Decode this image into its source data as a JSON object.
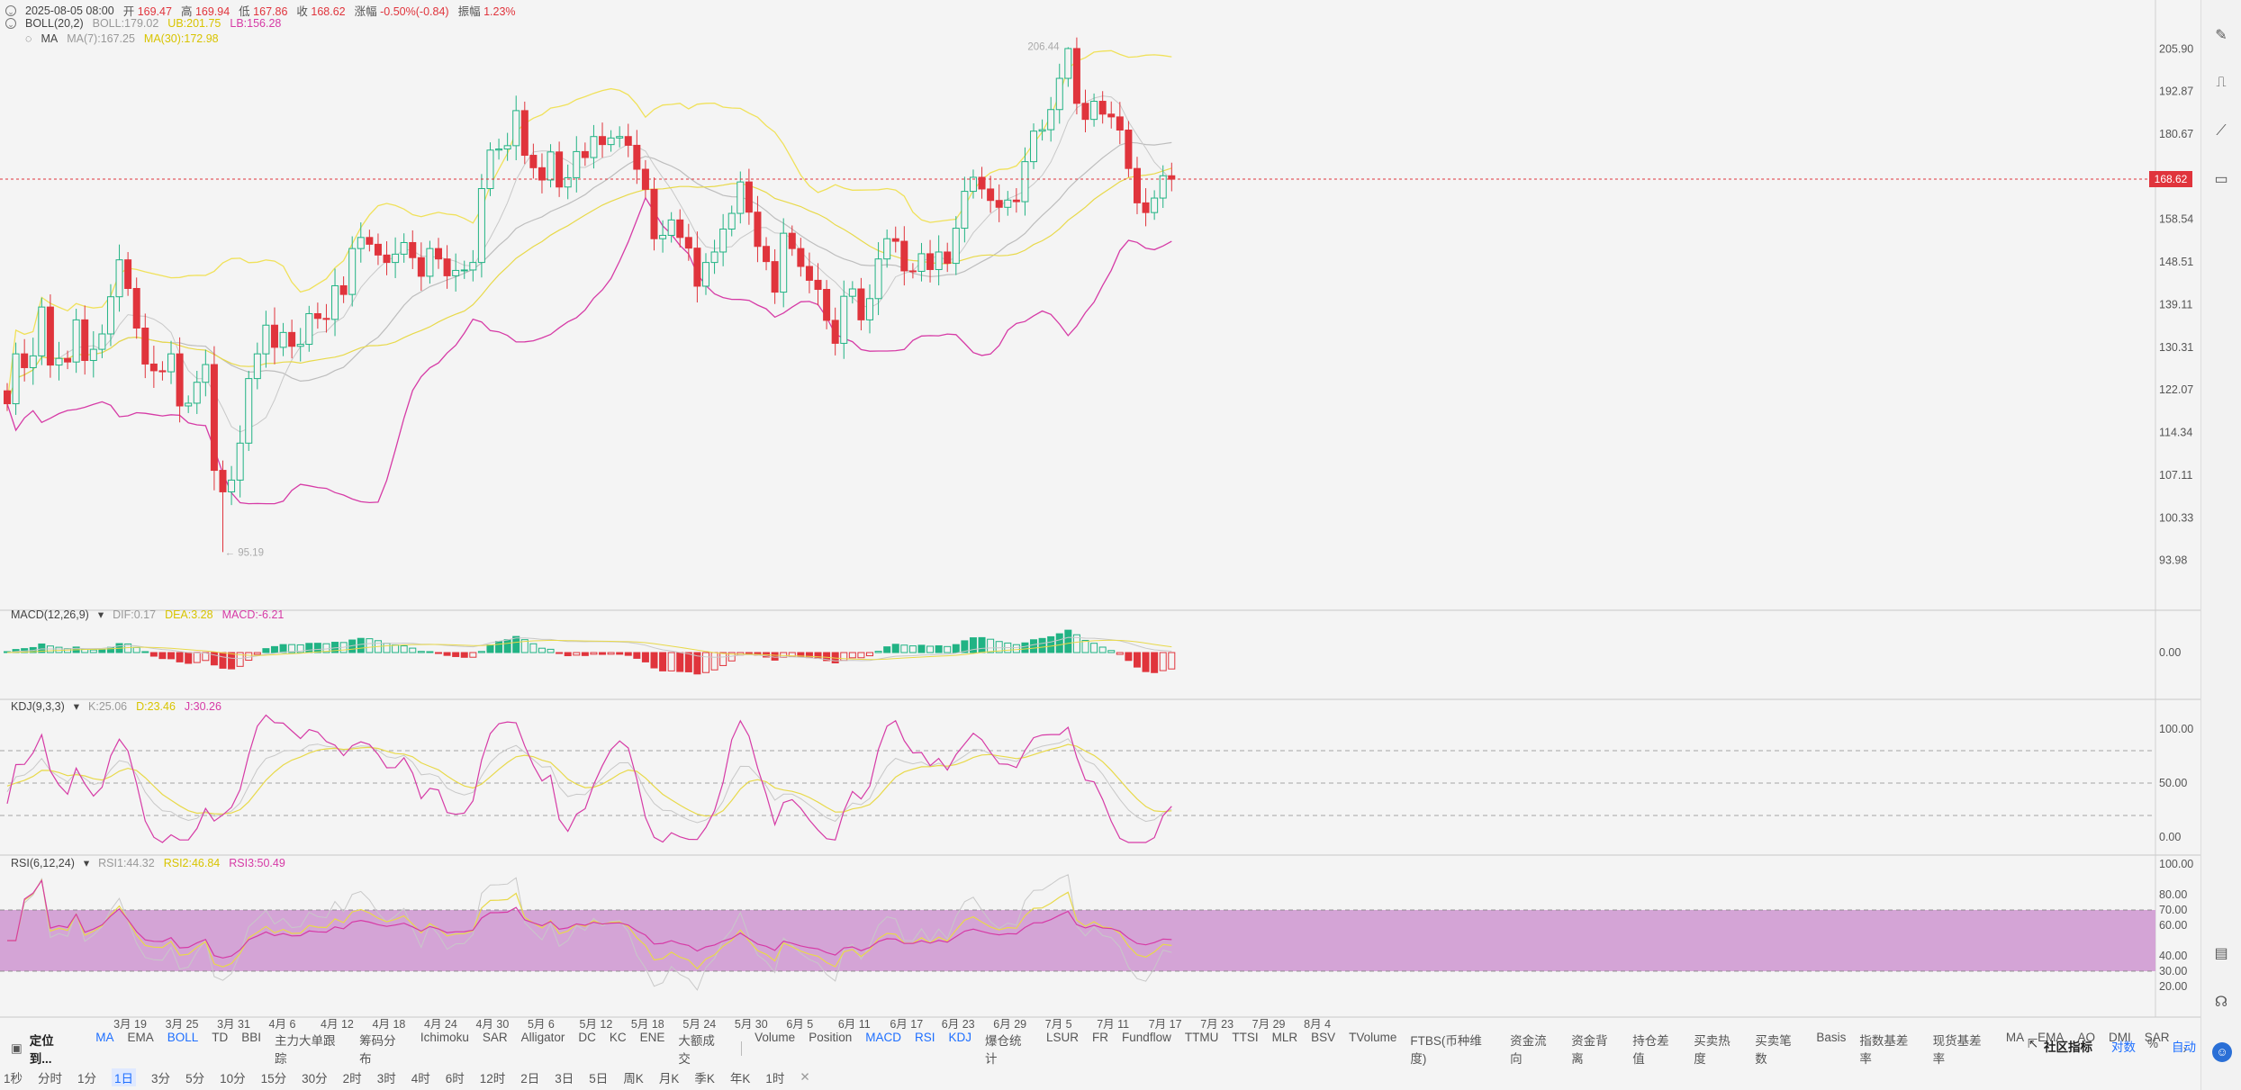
{
  "header": {
    "date": "2025-08-05 08:00",
    "open_label": "开",
    "open": "169.47",
    "high_label": "高",
    "high": "169.94",
    "low_label": "低",
    "low": "167.86",
    "close_label": "收",
    "close": "168.62",
    "change_label": "涨幅",
    "change": "-0.50%(-0.84)",
    "amp_label": "振幅",
    "amp": "1.23%"
  },
  "boll_legend": {
    "name": "BOLL(20,2)",
    "boll": "BOLL:179.02",
    "ub": "UB:201.75",
    "lb": "LB:156.28"
  },
  "ma_legend": {
    "name": "MA",
    "ma7": "MA(7):167.25",
    "ma30": "MA(30):172.98"
  },
  "macd_legend": {
    "name": "MACD(12,26,9)",
    "dif": "DIF:0.17",
    "dea": "DEA:3.28",
    "macd": "MACD:-6.21"
  },
  "kdj_legend": {
    "name": "KDJ(9,3,3)",
    "k": "K:25.06",
    "d": "D:23.46",
    "j": "J:30.26"
  },
  "rsi_legend": {
    "name": "RSI(6,12,24)",
    "rsi1": "RSI1:44.32",
    "rsi2": "RSI2:46.84",
    "rsi3": "RSI3:50.49"
  },
  "current_price": "168.62",
  "indicator_bar": {
    "lead": "定位到...",
    "main": [
      "MA",
      "EMA",
      "BOLL",
      "TD",
      "BBI",
      "主力大单跟踪",
      "筹码分布",
      "Ichimoku",
      "SAR",
      "Alligator",
      "DC",
      "KC",
      "ENE",
      "大额成交"
    ],
    "sub": [
      "Volume",
      "Position",
      "MACD",
      "RSI",
      "KDJ",
      "爆仓统计",
      "LSUR",
      "FR",
      "Fundflow",
      "TTMU",
      "TTSI",
      "MLR",
      "BSV",
      "TVolume",
      "FTBS(币种维度)",
      "资金流向",
      "资金背离",
      "持仓差值",
      "买卖热度",
      "买卖笔数",
      "Basis",
      "指数基差率",
      "现货基差率",
      "MA",
      "EMA",
      "AO",
      "DMI",
      "SAR"
    ],
    "active": [
      "MA",
      "BOLL",
      "MACD",
      "RSI",
      "KDJ"
    ],
    "community": "社区指标",
    "log": "对数",
    "percent": "%",
    "auto": "自动"
  },
  "timeframes": {
    "items": [
      "1秒",
      "分时",
      "1分",
      "1日",
      "3分",
      "5分",
      "10分",
      "15分",
      "30分",
      "2时",
      "3时",
      "4时",
      "6时",
      "12时",
      "2日",
      "3日",
      "5日",
      "周K",
      "月K",
      "季K",
      "年K",
      "1时"
    ],
    "active": "1日"
  },
  "right_toolbar": [
    "draw-icon",
    "chart-icon",
    "line-icon",
    "screenshot-icon",
    "settings-icon",
    "layout-icon",
    "headset-icon",
    "avatar-icon"
  ],
  "chart_data": {
    "type": "candlestick",
    "x_tick_labels": [
      "3月 19",
      "3月 25",
      "3月 31",
      "4月 6",
      "4月 12",
      "4月 18",
      "4月 24",
      "4月 30",
      "5月 6",
      "5月 12",
      "5月 18",
      "5月 24",
      "5月 30",
      "6月 5",
      "6月 11",
      "6月 17",
      "6月 23",
      "6月 29",
      "7月 5",
      "7月 11",
      "7月 17",
      "7月 23",
      "7月 29",
      "8月 4"
    ],
    "price_ticks": [
      "205.90",
      "192.87",
      "180.67",
      "168.62",
      "158.54",
      "148.51",
      "139.11",
      "130.31",
      "122.07",
      "114.34",
      "107.11",
      "100.33",
      "93.98"
    ],
    "ylim": [
      90.5,
      210
    ],
    "max_label": "206.44",
    "min_label": "95.19",
    "macd_ticks": [
      "0.00"
    ],
    "kdj_ticks": [
      "100.00",
      "50.00",
      "0.00"
    ],
    "rsi_ticks": [
      "100.00",
      "80.00",
      "70.00",
      "60.00",
      "40.00",
      "30.00",
      "20.00"
    ],
    "colors": {
      "up": "#21b384",
      "down": "#e0343c",
      "boll_mid": "#bdbdbd",
      "boll_upper": "#f0e15a",
      "boll_lower": "#d63ba6",
      "ma7": "#c8c8c8",
      "ma30": "#e8d94a"
    },
    "closes": [
      119.5,
      129.0,
      126.3,
      128.6,
      138.6,
      126.8,
      128.1,
      127.4,
      135.9,
      127.7,
      129.9,
      133.0,
      140.8,
      149.0,
      142.6,
      134.2,
      127.0,
      125.7,
      125.5,
      129.0,
      119.1,
      119.6,
      123.5,
      126.9,
      107.9,
      104.4,
      106.3,
      112.5,
      124.2,
      129.0,
      134.8,
      130.3,
      133.3,
      130.5,
      130.9,
      137.2,
      136.2,
      136.0,
      143.2,
      141.3,
      151.6,
      154.2,
      152.6,
      150.1,
      148.4,
      150.3,
      153.0,
      149.5,
      145.3,
      151.6,
      149.2,
      145.4,
      146.6,
      146.7,
      148.4,
      166.2,
      176.3,
      176.6,
      177.5,
      187.3,
      174.9,
      171.6,
      168.4,
      175.8,
      166.6,
      169.0,
      175.9,
      174.3,
      180.0,
      177.8,
      179.6,
      180.0,
      177.6,
      171.2,
      166.0,
      153.9,
      154.7,
      158.4,
      154.2,
      151.7,
      143.1,
      148.4,
      150.8,
      156.2,
      160.0,
      167.9,
      160.3,
      152.1,
      148.6,
      141.8,
      155.2,
      151.6,
      147.5,
      144.4,
      142.4,
      135.8,
      131.1,
      140.9,
      142.5,
      135.9,
      140.4,
      149.2,
      153.9,
      153.3,
      146.5,
      146.4,
      150.4,
      146.8,
      150.8,
      148.2,
      156.4,
      165.5,
      169.1,
      166.1,
      163.2,
      161.5,
      163.3,
      162.9,
      173.2,
      181.5,
      181.9,
      187.6,
      196.8,
      206.0,
      189.4,
      184.8,
      190.0,
      186.3,
      185.5,
      181.8,
      171.4,
      162.6,
      160.2,
      163.8,
      169.5,
      168.6
    ]
  }
}
